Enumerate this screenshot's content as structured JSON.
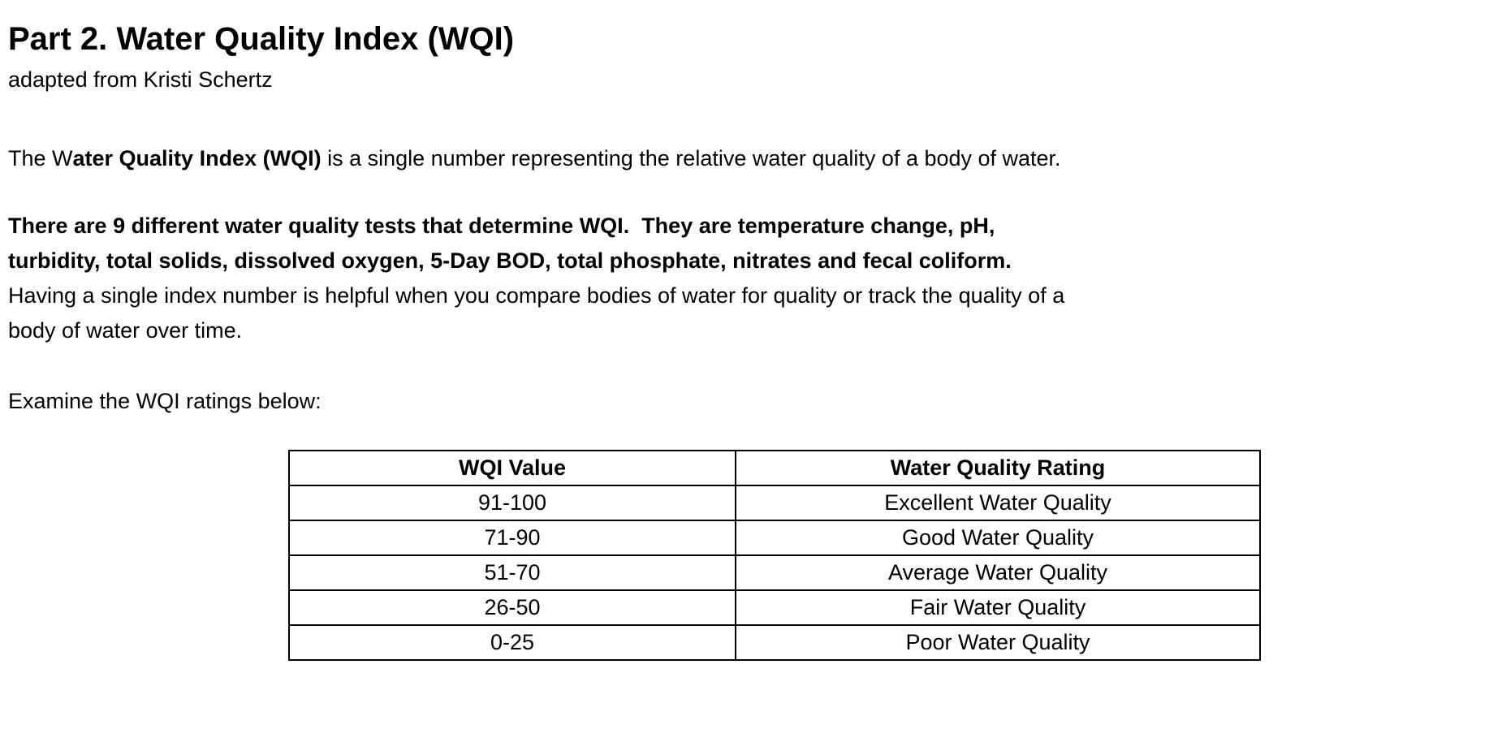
{
  "page": {
    "title": "Part 2. Water Quality Index (WQI)",
    "subtitle": "adapted from Kristi Schertz"
  },
  "paragraphs": [
    {
      "name": "intro-paragraph",
      "class": "para-intro",
      "lines": [
        [
          {
            "text": "The W",
            "bold": false
          },
          {
            "text": "ater Quality Index (WQI)",
            "bold": true
          },
          {
            "text": " is a single number representing the relative water quality of a body of water.",
            "bold": false
          }
        ]
      ]
    },
    {
      "name": "tests-paragraph",
      "class": "para-tests",
      "lines": [
        [
          {
            "text": "There are 9 different water quality tests that determine WQI.  They are temperature change, pH,",
            "bold": true
          }
        ],
        [
          {
            "text": "turbidity, total solids, dissolved oxygen, 5-Day BOD, total phosphate, nitrates and fecal coliform.",
            "bold": true
          }
        ],
        [
          {
            "text": "Having a single index number is helpful when you compare bodies of water for quality or track the quality of a",
            "bold": false
          }
        ],
        [
          {
            "text": "body of water over time.",
            "bold": false
          }
        ]
      ]
    },
    {
      "name": "examine-paragraph",
      "class": "para-examine",
      "lines": [
        [
          {
            "text": "Examine the WQI ratings below:",
            "bold": false
          }
        ]
      ]
    }
  ],
  "table": {
    "headers": [
      "WQI Value",
      "Water Quality Rating"
    ],
    "rows": [
      [
        "91-100",
        "Excellent Water Quality"
      ],
      [
        "71-90",
        "Good Water Quality"
      ],
      [
        "51-70",
        "Average Water Quality"
      ],
      [
        "26-50",
        "Fair Water Quality"
      ],
      [
        "0-25",
        "Poor Water Quality"
      ]
    ]
  },
  "colors": {
    "text": "#000000",
    "background": "#ffffff",
    "table_border": "#000000"
  }
}
